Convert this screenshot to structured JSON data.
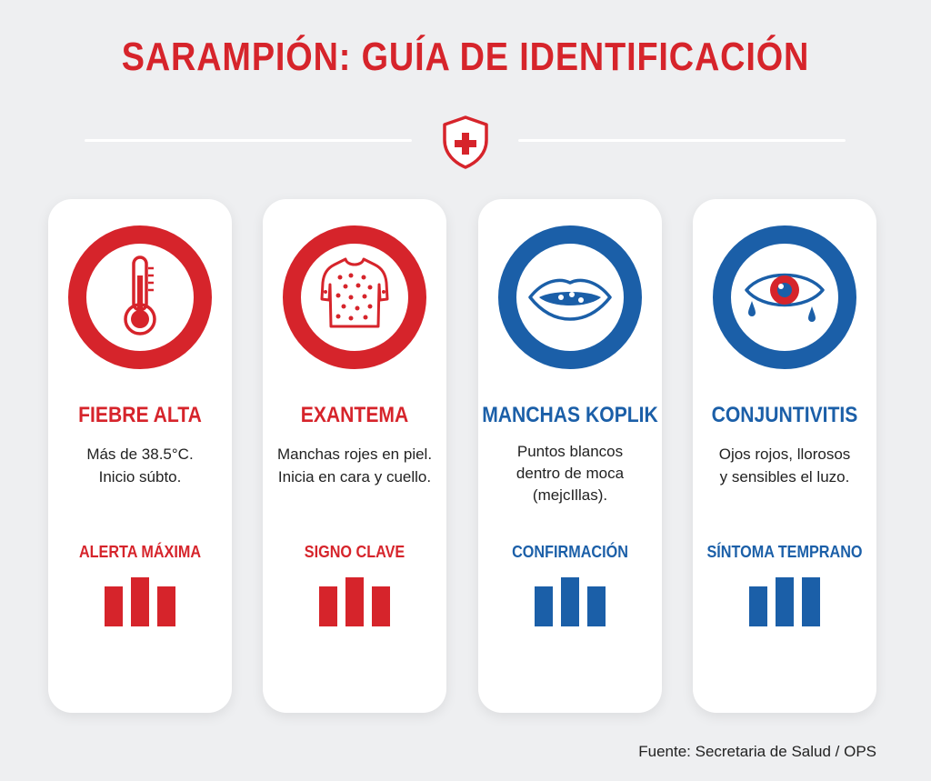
{
  "title": "SARAMPIÓN: GUÍA DE IDENTIFICACIÓN",
  "cards": [
    {
      "title": "FIEBRE ALTA",
      "desc": [
        "Más de 38.5°C.",
        "Inicio súbto."
      ],
      "label": "ALERTA MÁXIMA",
      "icon": "thermometer-icon",
      "color": "#d6242b"
    },
    {
      "title": "EXANTEMA",
      "desc": [
        "Manchas rojes en piel.",
        "Inicia en cara y cuello."
      ],
      "label": "SIGNO CLAVE",
      "icon": "rash-torso-icon",
      "color": "#d6242b"
    },
    {
      "title": "MANCHAS KOPLIK",
      "desc": [
        "Puntos blancos",
        "dentro de moca",
        "(mejcIllas)."
      ],
      "label": "CONFIRMACIÓN",
      "icon": "mouth-icon",
      "color": "#1b5fa8"
    },
    {
      "title": "CONJUNTIVITIS",
      "desc": [
        "Ojos rojos, llorosos",
        "y sensibles el luzo."
      ],
      "label": "SÍNTOMA TEMPRANO",
      "icon": "teary-eye-icon",
      "color": "#1b5fa8"
    }
  ],
  "source": "Fuente: Secretaria de Salud / OPS",
  "colors": {
    "red": "#d6242b",
    "blue": "#1b5fa8",
    "background": "#eeeff1"
  }
}
